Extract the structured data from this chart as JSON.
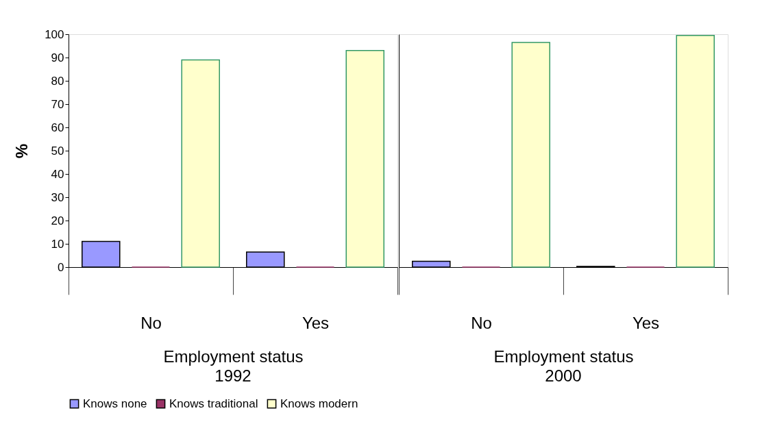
{
  "chart_data": [
    {
      "type": "bar",
      "categories": [
        "No",
        "Yes"
      ],
      "xlabel": "Employment status",
      "ylabel": "%",
      "annotations": [
        "1992"
      ],
      "series": [
        {
          "name": "Knows none",
          "color": "#9999ff",
          "values": [
            11,
            6.5
          ]
        },
        {
          "name": "Knows traditional",
          "color": "#993366",
          "values": [
            0,
            0
          ]
        },
        {
          "name": "Knows modern",
          "color": "#ffffcc",
          "values": [
            89,
            93
          ]
        }
      ],
      "ylim": [
        0,
        100
      ],
      "yticks": [
        0,
        10,
        20,
        30,
        40,
        50,
        60,
        70,
        80,
        90,
        100
      ],
      "grid": false,
      "legend": "bottom"
    },
    {
      "type": "bar",
      "categories": [
        "No",
        "Yes"
      ],
      "xlabel": "Employment status",
      "annotations": [
        "2000"
      ],
      "series": [
        {
          "name": "Knows none",
          "color": "#9999ff",
          "values": [
            2.5,
            0.3
          ]
        },
        {
          "name": "Knows traditional",
          "color": "#993366",
          "values": [
            0,
            0
          ]
        },
        {
          "name": "Knows modern",
          "color": "#ffffcc",
          "values": [
            96.5,
            99.5
          ]
        }
      ],
      "ylim": [
        0,
        100
      ],
      "yticks": [
        0,
        10,
        20,
        30,
        40,
        50,
        60,
        70,
        80,
        90,
        100
      ],
      "tick_labels": "x",
      "grid": false,
      "legend": false
    }
  ]
}
